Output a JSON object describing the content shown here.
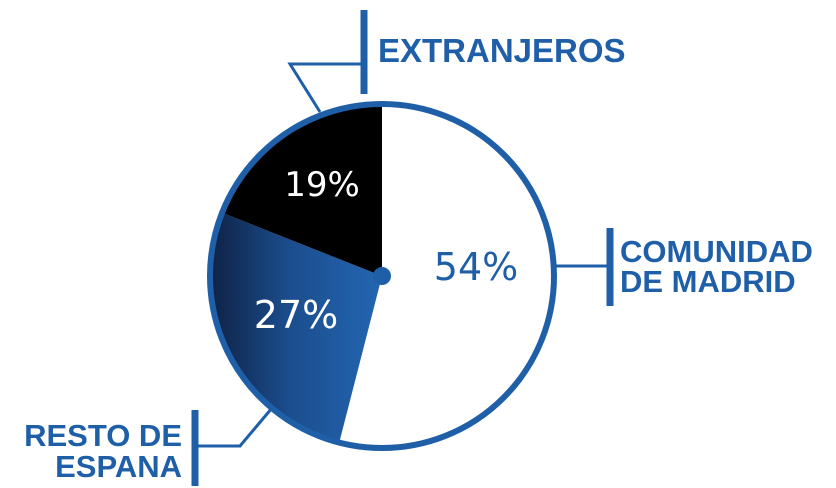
{
  "chart_data": {
    "type": "pie",
    "title": "",
    "slices": [
      {
        "label_lines": [
          "COMUNIDAD",
          "DE MADRID"
        ],
        "value": 54,
        "value_label": "54%",
        "color": "#ffffff",
        "text_color": "#1f5fa8"
      },
      {
        "label_lines": [
          "RESTO DE",
          "ESPANA"
        ],
        "value": 27,
        "value_label": "27%",
        "color": "#1f5fa8",
        "text_color": "#ffffff"
      },
      {
        "label_lines": [
          "EXTRANJEROS"
        ],
        "value": 19,
        "value_label": "19%",
        "color": "#000000",
        "text_color": "#ffffff"
      }
    ],
    "rim_color": "#1f5fa8",
    "label_color": "#1f5fa8"
  }
}
